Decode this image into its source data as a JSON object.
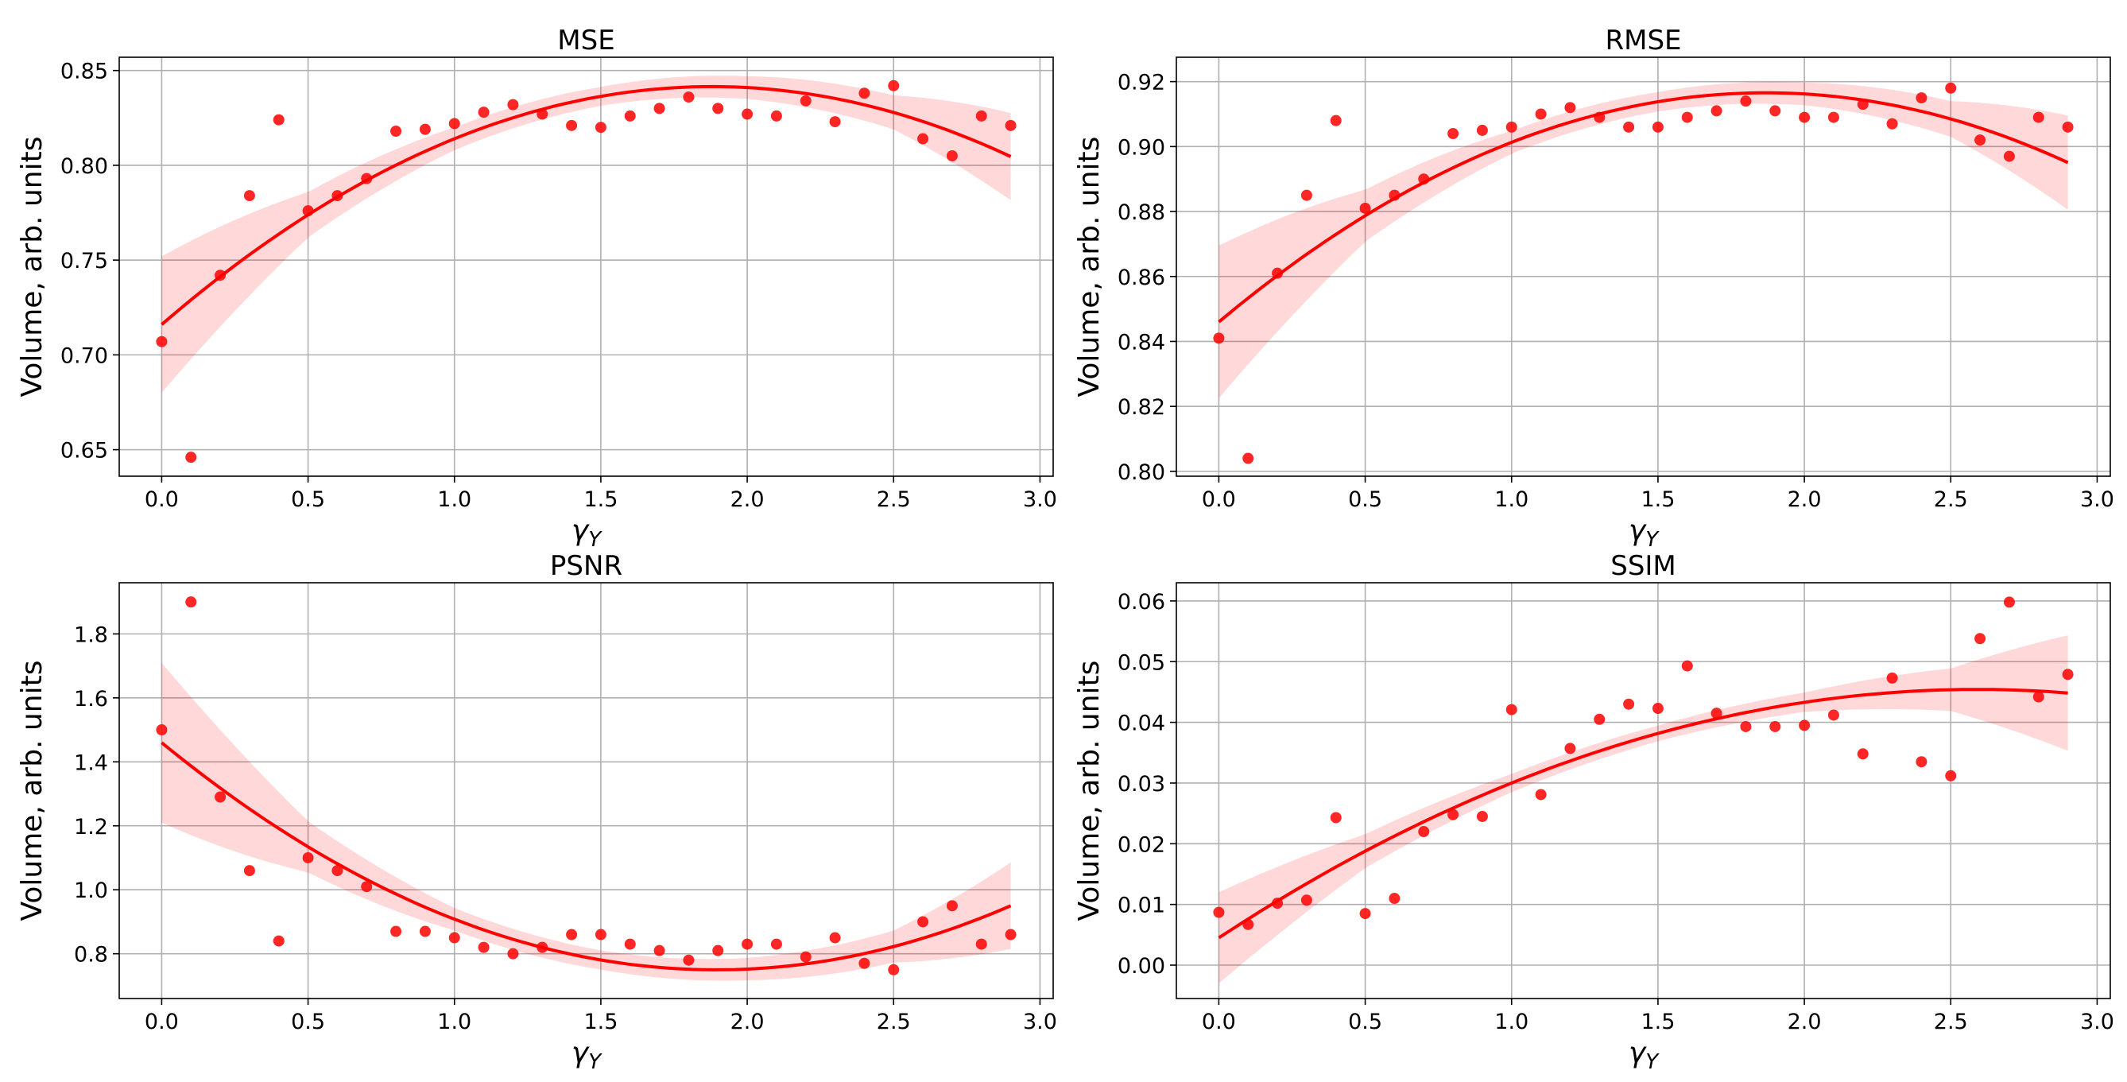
{
  "chart_data": [
    {
      "type": "scatter",
      "title": "MSE",
      "xlabel": "γ",
      "xlabel_sub": "Y",
      "ylabel": "Volume, arb. units",
      "xlim": [
        -0.145,
        3.045
      ],
      "ylim": [
        0.636,
        0.857
      ],
      "xticks": [
        0.0,
        0.5,
        1.0,
        1.5,
        2.0,
        2.5,
        3.0
      ],
      "xtick_labels": [
        "0.0",
        "0.5",
        "1.0",
        "1.5",
        "2.0",
        "2.5",
        "3.0"
      ],
      "yticks": [
        0.65,
        0.7,
        0.75,
        0.8,
        0.85
      ],
      "ytick_labels": [
        "0.65",
        "0.70",
        "0.75",
        "0.80",
        "0.85"
      ],
      "grid": true,
      "x": [
        0.0,
        0.1,
        0.2,
        0.3,
        0.4,
        0.5,
        0.6,
        0.7,
        0.8,
        0.9,
        1.0,
        1.1,
        1.2,
        1.3,
        1.4,
        1.5,
        1.6,
        1.7,
        1.8,
        1.9,
        2.0,
        2.1,
        2.2,
        2.3,
        2.4,
        2.5,
        2.6,
        2.7,
        2.8,
        2.9
      ],
      "y": [
        0.707,
        0.646,
        0.742,
        0.784,
        0.824,
        0.776,
        0.784,
        0.793,
        0.818,
        0.819,
        0.822,
        0.828,
        0.832,
        0.827,
        0.821,
        0.82,
        0.826,
        0.83,
        0.836,
        0.83,
        0.827,
        0.826,
        0.834,
        0.823,
        0.838,
        0.842,
        0.814,
        0.805,
        0.826,
        0.821
      ],
      "fit": {
        "order": 2,
        "coef": [
          0.716,
          0.1335,
          -0.0355
        ],
        "ci_x": [
          0.0,
          0.5,
          1.0,
          1.5,
          2.0,
          2.5,
          2.9
        ],
        "ci_half_width": [
          0.036,
          0.012,
          0.006,
          0.005,
          0.006,
          0.009,
          0.023
        ]
      }
    },
    {
      "type": "scatter",
      "title": "RMSE",
      "xlabel": "γ",
      "xlabel_sub": "Y",
      "ylabel": "Volume, arb. units",
      "xlim": [
        -0.145,
        3.045
      ],
      "ylim": [
        0.7985,
        0.9275
      ],
      "xticks": [
        0.0,
        0.5,
        1.0,
        1.5,
        2.0,
        2.5,
        3.0
      ],
      "xtick_labels": [
        "0.0",
        "0.5",
        "1.0",
        "1.5",
        "2.0",
        "2.5",
        "3.0"
      ],
      "yticks": [
        0.8,
        0.82,
        0.84,
        0.86,
        0.88,
        0.9,
        0.92
      ],
      "ytick_labels": [
        "0.80",
        "0.82",
        "0.84",
        "0.86",
        "0.88",
        "0.90",
        "0.92"
      ],
      "grid": true,
      "x": [
        0.0,
        0.1,
        0.2,
        0.3,
        0.4,
        0.5,
        0.6,
        0.7,
        0.8,
        0.9,
        1.0,
        1.1,
        1.2,
        1.3,
        1.4,
        1.5,
        1.6,
        1.7,
        1.8,
        1.9,
        2.0,
        2.1,
        2.2,
        2.3,
        2.4,
        2.5,
        2.6,
        2.7,
        2.8,
        2.9
      ],
      "y": [
        0.841,
        0.804,
        0.861,
        0.885,
        0.908,
        0.881,
        0.885,
        0.89,
        0.904,
        0.905,
        0.906,
        0.91,
        0.912,
        0.909,
        0.906,
        0.906,
        0.909,
        0.911,
        0.914,
        0.911,
        0.909,
        0.909,
        0.913,
        0.907,
        0.915,
        0.918,
        0.902,
        0.897,
        0.909,
        0.906
      ],
      "fit": {
        "order": 2,
        "coef": [
          0.846,
          0.0755,
          -0.0202
        ],
        "ci_x": [
          0.0,
          0.5,
          1.0,
          1.5,
          2.0,
          2.5,
          2.9
        ],
        "ci_half_width": [
          0.0235,
          0.008,
          0.0035,
          0.003,
          0.0035,
          0.0055,
          0.0145
        ]
      }
    },
    {
      "type": "scatter",
      "title": "PSNR",
      "xlabel": "γ",
      "xlabel_sub": "Y",
      "ylabel": "Volume, arb. units",
      "xlim": [
        -0.145,
        3.045
      ],
      "ylim": [
        0.66,
        1.96
      ],
      "xticks": [
        0.0,
        0.5,
        1.0,
        1.5,
        2.0,
        2.5,
        3.0
      ],
      "xtick_labels": [
        "0.0",
        "0.5",
        "1.0",
        "1.5",
        "2.0",
        "2.5",
        "3.0"
      ],
      "yticks": [
        0.8,
        1.0,
        1.2,
        1.4,
        1.6,
        1.8
      ],
      "ytick_labels": [
        "0.8",
        "1.0",
        "1.2",
        "1.4",
        "1.6",
        "1.8"
      ],
      "grid": true,
      "x": [
        0.0,
        0.1,
        0.2,
        0.3,
        0.4,
        0.5,
        0.6,
        0.7,
        0.8,
        0.9,
        1.0,
        1.1,
        1.2,
        1.3,
        1.4,
        1.5,
        1.6,
        1.7,
        1.8,
        1.9,
        2.0,
        2.1,
        2.2,
        2.3,
        2.4,
        2.5,
        2.6,
        2.7,
        2.8,
        2.9
      ],
      "y": [
        1.5,
        1.9,
        1.29,
        1.06,
        0.84,
        1.1,
        1.06,
        1.01,
        0.87,
        0.87,
        0.85,
        0.82,
        0.8,
        0.82,
        0.86,
        0.86,
        0.83,
        0.81,
        0.78,
        0.81,
        0.83,
        0.83,
        0.79,
        0.85,
        0.77,
        0.75,
        0.9,
        0.95,
        0.83,
        0.86
      ],
      "fit": {
        "order": 2,
        "coef": [
          1.46,
          -0.75,
          0.198
        ],
        "ci_x": [
          0.0,
          0.5,
          1.0,
          1.5,
          2.0,
          2.5,
          2.9
        ],
        "ci_half_width": [
          0.25,
          0.08,
          0.035,
          0.03,
          0.035,
          0.05,
          0.135
        ]
      }
    },
    {
      "type": "scatter",
      "title": "SSIM",
      "xlabel": "γ",
      "xlabel_sub": "Y",
      "ylabel": "Volume, arb. units",
      "xlim": [
        -0.145,
        3.045
      ],
      "ylim": [
        -0.0055,
        0.063
      ],
      "xticks": [
        0.0,
        0.5,
        1.0,
        1.5,
        2.0,
        2.5,
        3.0
      ],
      "xtick_labels": [
        "0.0",
        "0.5",
        "1.0",
        "1.5",
        "2.0",
        "2.5",
        "3.0"
      ],
      "yticks": [
        0.0,
        0.01,
        0.02,
        0.03,
        0.04,
        0.05,
        0.06
      ],
      "ytick_labels": [
        "0.00",
        "0.01",
        "0.02",
        "0.03",
        "0.04",
        "0.05",
        "0.06"
      ],
      "grid": true,
      "x": [
        0.0,
        0.1,
        0.2,
        0.3,
        0.4,
        0.5,
        0.6,
        0.7,
        0.8,
        0.9,
        1.0,
        1.1,
        1.2,
        1.3,
        1.4,
        1.5,
        1.6,
        1.7,
        1.8,
        1.9,
        2.0,
        2.1,
        2.2,
        2.3,
        2.4,
        2.5,
        2.6,
        2.7,
        2.8,
        2.9
      ],
      "y": [
        0.0087,
        0.0067,
        0.0102,
        0.0107,
        0.0243,
        0.0085,
        0.011,
        0.022,
        0.0248,
        0.0245,
        0.0421,
        0.0281,
        0.0357,
        0.0405,
        0.043,
        0.0423,
        0.0493,
        0.0415,
        0.0393,
        0.0393,
        0.0395,
        0.0412,
        0.0348,
        0.0473,
        0.0335,
        0.0312,
        0.0538,
        0.0598,
        0.0442,
        0.0479
      ],
      "fit": {
        "order": 2,
        "coef": [
          0.0045,
          0.0316,
          -0.0061
        ],
        "ci_x": [
          0.0,
          0.5,
          1.0,
          1.5,
          2.0,
          2.5,
          2.9
        ],
        "ci_half_width": [
          0.0075,
          0.0028,
          0.0015,
          0.0013,
          0.0016,
          0.0035,
          0.0095
        ]
      }
    }
  ]
}
